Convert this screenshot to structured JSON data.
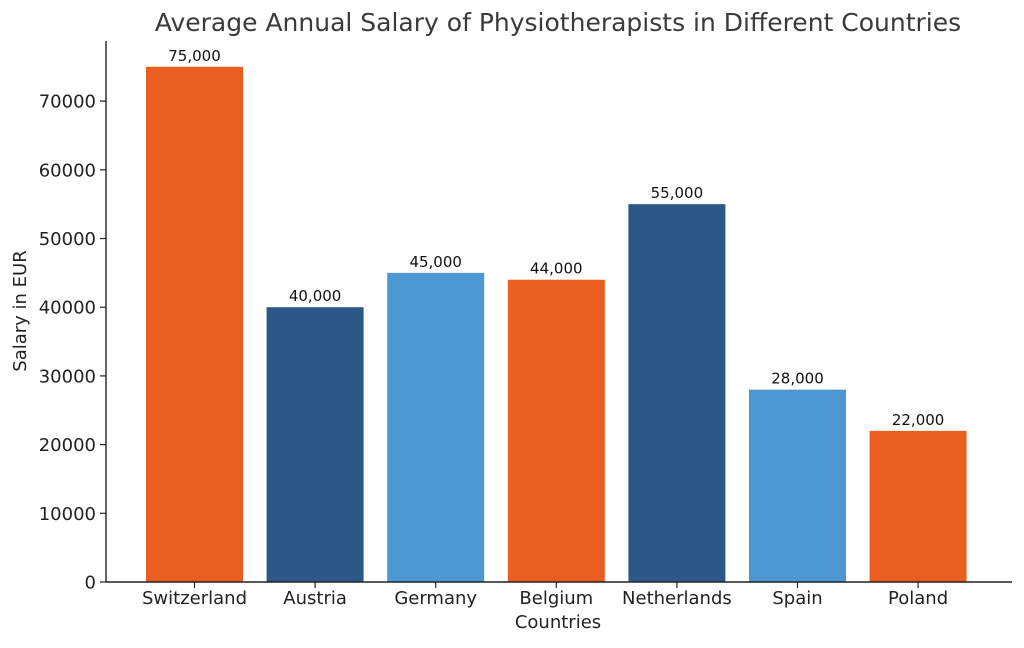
{
  "chart_data": {
    "type": "bar",
    "title": "Average Annual Salary of Physiotherapists in Different Countries",
    "xlabel": "Countries",
    "ylabel": "Salary in EUR",
    "categories": [
      "Switzerland",
      "Austria",
      "Germany",
      "Belgium",
      "Netherlands",
      "Spain",
      "Poland"
    ],
    "values": [
      75000,
      40000,
      45000,
      44000,
      55000,
      28000,
      22000
    ],
    "value_labels": [
      "75,000",
      "40,000",
      "45,000",
      "44,000",
      "55,000",
      "28,000",
      "22,000"
    ],
    "bar_colors": [
      "#EA5F21",
      "#2B5886",
      "#4D98D2",
      "#EA5F21",
      "#2B5886",
      "#4D98D2",
      "#EA5F21"
    ],
    "ylim": [
      0,
      78750
    ],
    "yticks": [
      0,
      10000,
      20000,
      30000,
      40000,
      50000,
      60000,
      70000
    ],
    "grid": false,
    "legend": "none"
  }
}
